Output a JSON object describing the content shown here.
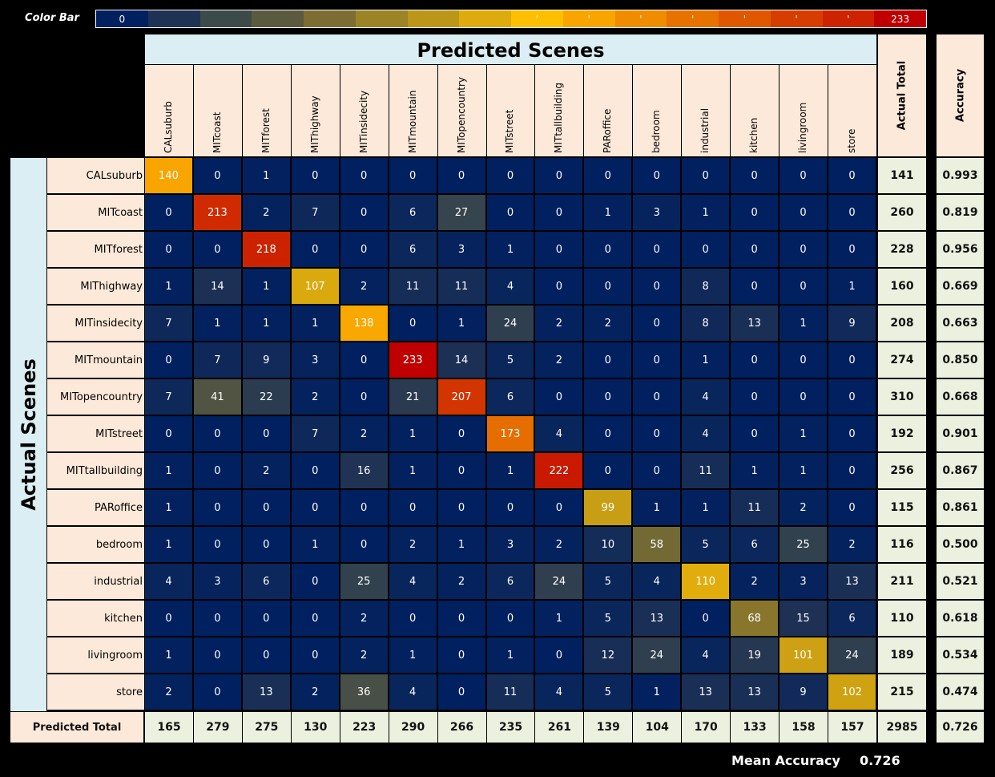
{
  "color_bar": {
    "label": "Color Bar",
    "min_label": "0",
    "max_label": "233",
    "colors": [
      "#00205f",
      "#1f3254",
      "#3d4a4a",
      "#5c5a3e",
      "#7c6e32",
      "#9b8326",
      "#bc9619",
      "#ddab0d",
      "#fdbf00",
      "#f8a500",
      "#f08c00",
      "#e77200",
      "#df5800",
      "#d63e00",
      "#cd2300",
      "#c00000"
    ]
  },
  "chart_data": {
    "type": "heatmap",
    "title": "Predicted Scenes",
    "xlabel": "Predicted Scenes",
    "ylabel": "Actual Scenes",
    "x_categories": [
      "CALsuburb",
      "MITcoast",
      "MITforest",
      "MIThighway",
      "MITinsidecity",
      "MITmountain",
      "MITopencountry",
      "MITstreet",
      "MITtallbuilding",
      "PARoffice",
      "bedroom",
      "industrial",
      "kitchen",
      "livingroom",
      "store"
    ],
    "y_categories": [
      "CALsuburb",
      "MITcoast",
      "MITforest",
      "MIThighway",
      "MITinsidecity",
      "MITmountain",
      "MITopencountry",
      "MITstreet",
      "MITtallbuilding",
      "PARoffice",
      "bedroom",
      "industrial",
      "kitchen",
      "livingroom",
      "store"
    ],
    "values": [
      [
        140,
        0,
        1,
        0,
        0,
        0,
        0,
        0,
        0,
        0,
        0,
        0,
        0,
        0,
        0
      ],
      [
        0,
        213,
        2,
        7,
        0,
        6,
        27,
        0,
        0,
        1,
        3,
        1,
        0,
        0,
        0
      ],
      [
        0,
        0,
        218,
        0,
        0,
        6,
        3,
        1,
        0,
        0,
        0,
        0,
        0,
        0,
        0
      ],
      [
        1,
        14,
        1,
        107,
        2,
        11,
        11,
        4,
        0,
        0,
        0,
        8,
        0,
        0,
        1
      ],
      [
        7,
        1,
        1,
        1,
        138,
        0,
        1,
        24,
        2,
        2,
        0,
        8,
        13,
        1,
        9
      ],
      [
        0,
        7,
        9,
        3,
        0,
        233,
        14,
        5,
        2,
        0,
        0,
        1,
        0,
        0,
        0
      ],
      [
        7,
        41,
        22,
        2,
        0,
        21,
        207,
        6,
        0,
        0,
        0,
        4,
        0,
        0,
        0
      ],
      [
        0,
        0,
        0,
        7,
        2,
        1,
        0,
        173,
        4,
        0,
        0,
        4,
        0,
        1,
        0
      ],
      [
        1,
        0,
        2,
        0,
        16,
        1,
        0,
        1,
        222,
        0,
        0,
        11,
        1,
        1,
        0
      ],
      [
        1,
        0,
        0,
        0,
        0,
        0,
        0,
        0,
        0,
        99,
        1,
        1,
        11,
        2,
        0
      ],
      [
        1,
        0,
        0,
        1,
        0,
        2,
        1,
        3,
        2,
        10,
        58,
        5,
        6,
        25,
        2
      ],
      [
        4,
        3,
        6,
        0,
        25,
        4,
        2,
        6,
        24,
        5,
        4,
        110,
        2,
        3,
        13
      ],
      [
        0,
        0,
        0,
        0,
        2,
        0,
        0,
        0,
        1,
        5,
        13,
        0,
        68,
        15,
        6
      ],
      [
        1,
        0,
        0,
        0,
        2,
        1,
        0,
        1,
        0,
        12,
        24,
        4,
        19,
        101,
        24
      ],
      [
        2,
        0,
        13,
        2,
        36,
        4,
        0,
        11,
        4,
        5,
        1,
        13,
        13,
        9,
        102
      ]
    ],
    "value_range": [
      0,
      233
    ],
    "actual_total_label": "Actual Total",
    "accuracy_label": "Accuracy",
    "actual_totals": [
      "141",
      "260",
      "228",
      "160",
      "208",
      "274",
      "310",
      "192",
      "256",
      "115",
      "116",
      "211",
      "110",
      "189",
      "215"
    ],
    "accuracy": [
      "0.993",
      "0.819",
      "0.956",
      "0.669",
      "0.663",
      "0.850",
      "0.668",
      "0.901",
      "0.867",
      "0.861",
      "0.500",
      "0.521",
      "0.618",
      "0.534",
      "0.474"
    ],
    "predicted_total_label": "Predicted Total",
    "predicted_totals": [
      "165",
      "279",
      "275",
      "130",
      "223",
      "290",
      "266",
      "235",
      "261",
      "139",
      "104",
      "170",
      "133",
      "158",
      "157"
    ],
    "grand_total": "2985",
    "overall_accuracy": "0.726"
  },
  "mean_accuracy": {
    "label": "Mean Accuracy",
    "value": "0.726"
  }
}
